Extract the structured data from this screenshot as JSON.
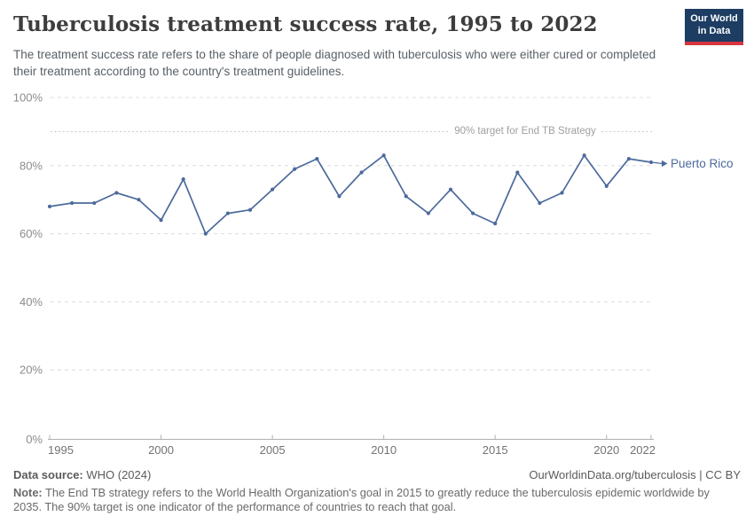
{
  "header": {
    "title": "Tuberculosis treatment success rate, 1995 to 2022",
    "subtitle": "The treatment success rate refers to the share of people diagnosed with tuberculosis who were either cured or completed their treatment according to the country's treatment guidelines.",
    "logo": {
      "line1": "Our World",
      "line2": "in Data",
      "bg_color": "#1d3d63",
      "stripe_color": "#d7353f"
    }
  },
  "chart_data": {
    "type": "line",
    "title": "Tuberculosis treatment success rate, 1995 to 2022",
    "x": [
      1995,
      1996,
      1997,
      1998,
      1999,
      2000,
      2001,
      2002,
      2003,
      2004,
      2005,
      2006,
      2007,
      2008,
      2009,
      2010,
      2011,
      2012,
      2013,
      2014,
      2015,
      2016,
      2017,
      2018,
      2019,
      2020,
      2021,
      2022
    ],
    "series": [
      {
        "name": "Puerto Rico",
        "color": "#4C6A9C",
        "values": [
          68,
          69,
          69,
          72,
          70,
          64,
          76,
          60,
          66,
          67,
          73,
          79,
          82,
          71,
          78,
          83,
          71,
          66,
          73,
          66,
          63,
          78,
          69,
          72,
          83,
          74,
          82,
          81
        ]
      }
    ],
    "xticks": [
      1995,
      2000,
      2005,
      2010,
      2015,
      2020,
      2022
    ],
    "yticks": [
      0,
      20,
      40,
      60,
      80,
      100
    ],
    "ytick_suffix": "%",
    "xlim": [
      1995,
      2022
    ],
    "ylim": [
      0,
      100
    ],
    "grid": true,
    "legend_position": "end-of-line",
    "target_line": {
      "value": 90,
      "label": "90% target for End TB Strategy"
    },
    "colors": {
      "line": "#4C6A9C",
      "gridline": "#dcdcdc",
      "target": "#c9c9c9",
      "axis": "#b0b0b0",
      "ytick_text": "#8c8c8c",
      "xtick_text": "#737373",
      "target_text": "#a0a0a0"
    }
  },
  "footer": {
    "datasource_label": "Data source:",
    "datasource_value": " WHO (2024)",
    "link": "OurWorldinData.org/tuberculosis | CC BY",
    "note_label": "Note:",
    "note_text": " The End TB strategy refers to the World Health Organization's goal in 2015 to greatly reduce the tuberculosis epidemic worldwide by 2035. The 90% target is one indicator of the performance of countries to reach that goal."
  }
}
